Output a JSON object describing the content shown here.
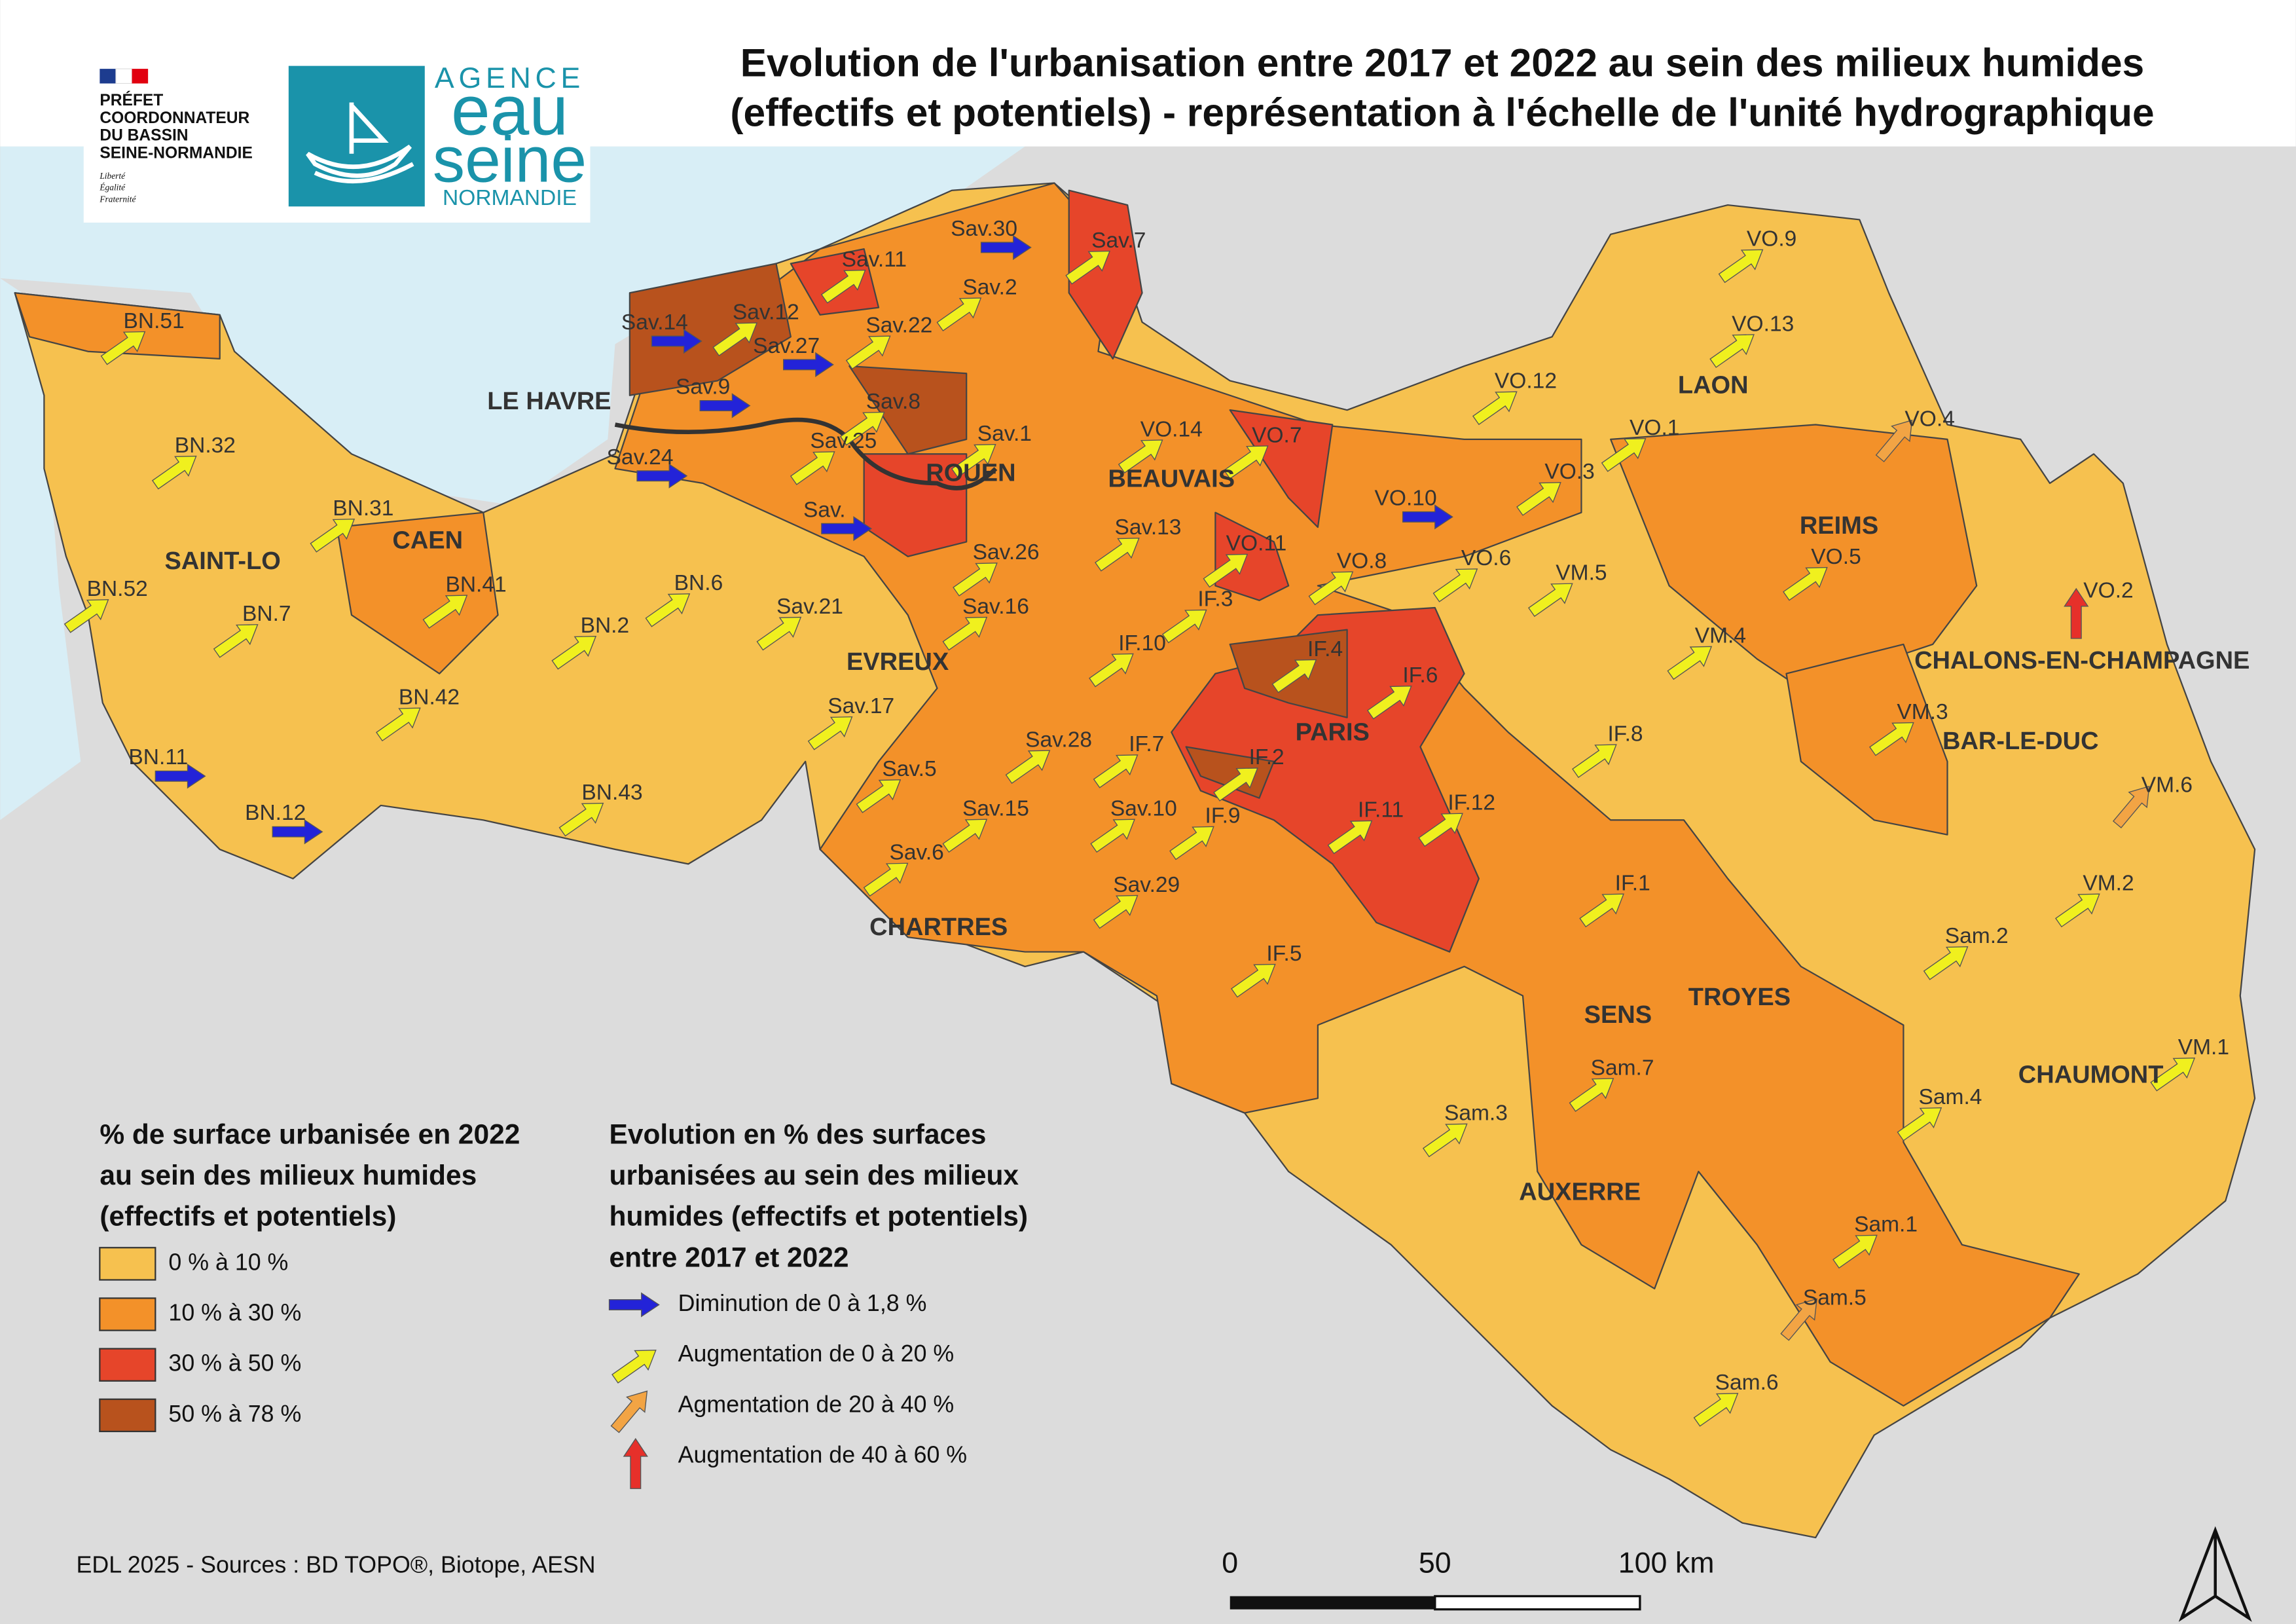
{
  "title": [
    "Evolution de l'urbanisation entre 2017 et 2022 au sein des milieux humides",
    "(effectifs et potentiels) - représentation à l'échelle de l'unité hydrographique"
  ],
  "logo_prefet": [
    "PRÉFET",
    "COORDONNATEUR",
    "DU BASSIN",
    "SEINE-NORMANDIE"
  ],
  "logo_devise": [
    "Liberté",
    "Égalité",
    "Fraternité"
  ],
  "logo_agence": [
    "AGENCE",
    "eau",
    "seine",
    "NORMANDIE"
  ],
  "cities": [
    "LE HAVRE",
    "ROUEN",
    "BEAUVAIS",
    "LAON",
    "REIMS",
    "SAINT-LO",
    "CAEN",
    "EVREUX",
    "PARIS",
    "CHALONS-EN-CHAMPAGNE",
    "BAR-LE-DUC",
    "CHARTRES",
    "SENS",
    "TROYES",
    "CHAUMONT",
    "AUXERRE"
  ],
  "units": [
    "BN.51",
    "BN.32",
    "BN.31",
    "BN.52",
    "BN.7",
    "BN.41",
    "BN.6",
    "BN.2",
    "BN.42",
    "BN.11",
    "BN.12",
    "BN.43",
    "Sav.14",
    "Sav.12",
    "Sav.27",
    "Sav.11",
    "Sav.30",
    "Sav.7",
    "Sav.2",
    "Sav.22",
    "Sav.9",
    "Sav.8",
    "Sav.25",
    "Sav.24",
    "Sav.1",
    "Sav.",
    "Sav.26",
    "Sav.16",
    "Sav.21",
    "Sav.13",
    "Sav.17",
    "Sav.5",
    "Sav.28",
    "Sav.15",
    "Sav.6",
    "Sav.10",
    "Sav.29",
    "IF.10",
    "IF.7",
    "IF.3",
    "IF.4",
    "IF.6",
    "IF.2",
    "IF.9",
    "IF.11",
    "IF.12",
    "IF.8",
    "IF.1",
    "IF.5",
    "VO.14",
    "VO.7",
    "VO.11",
    "VO.10",
    "VO.8",
    "VO.6",
    "VO.12",
    "VO.1",
    "VO.3",
    "VO.9",
    "VO.13",
    "VO.4",
    "VO.5",
    "VO.2",
    "VM.5",
    "VM.4",
    "VM.3",
    "VM.6",
    "VM.2",
    "VM.1",
    "Sam.2",
    "Sam.4",
    "Sam.7",
    "Sam.3",
    "Sam.1",
    "Sam.5",
    "Sam.6"
  ],
  "legend_urbanisation": {
    "title": [
      "% de surface urbanisée en 2022",
      "au sein des milieux humides",
      "(effectifs et potentiels)"
    ],
    "classes": [
      {
        "label": "0 % à 10 %",
        "color": "#f6c14f"
      },
      {
        "label": "10 % à 30 %",
        "color": "#f39129"
      },
      {
        "label": "30 % à 50 %",
        "color": "#e6452a"
      },
      {
        "label": "50 % à 78 %",
        "color": "#b8521d"
      }
    ]
  },
  "legend_evolution": {
    "title": [
      "Evolution en % des surfaces",
      "urbanisées au sein des milieux",
      "humides (effectifs et potentiels)",
      "entre 2017 et 2022"
    ],
    "items": [
      {
        "label": "Diminution de 0 à 1,8 %",
        "color": "#2323d8"
      },
      {
        "label": "Augmentation de 0 à 20 %",
        "color": "#f0f01e"
      },
      {
        "label": "Agmentation de 20 à 40 %",
        "color": "#f2a444"
      },
      {
        "label": "Augmentation de 40 à 60 %",
        "color": "#e6302a"
      }
    ]
  },
  "source": "EDL 2025 - Sources : BD TOPO®, Biotope, AESN",
  "scale_labels": [
    "0",
    "50",
    "100 km"
  ]
}
